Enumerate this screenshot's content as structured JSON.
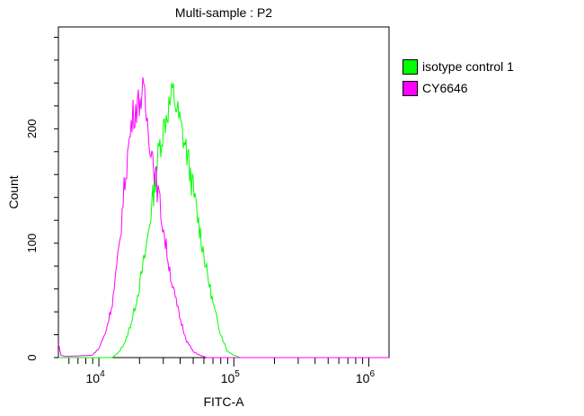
{
  "chart_data": {
    "type": "line",
    "title": "Multi-sample : P2",
    "xlabel": "FITC-A",
    "ylabel": "Count",
    "xscale": "log",
    "xlim_log10": [
      3.7,
      6.15
    ],
    "ylim": [
      0,
      289
    ],
    "x_ticks": [
      {
        "base": "10",
        "exp": "4",
        "log10": 4
      },
      {
        "base": "10",
        "exp": "5",
        "log10": 5
      },
      {
        "base": "10",
        "exp": "6",
        "log10": 6
      }
    ],
    "y_ticks": [
      {
        "label": "0",
        "value": 0
      },
      {
        "label": "100",
        "value": 100
      },
      {
        "label": "200",
        "value": 200
      }
    ],
    "legend_position": "right",
    "series": [
      {
        "name": "isotype control 1",
        "color": "#00ff00",
        "x_log10": [
          3.7,
          4.1,
          4.15,
          4.2,
          4.25,
          4.3,
          4.35,
          4.4,
          4.45,
          4.5,
          4.55,
          4.6,
          4.65,
          4.7,
          4.75,
          4.8,
          4.85,
          4.9,
          4.95,
          5.0,
          5.05,
          6.15
        ],
        "counts": [
          0,
          0,
          5,
          15,
          35,
          62,
          95,
          140,
          185,
          212,
          232,
          205,
          180,
          145,
          110,
          75,
          45,
          22,
          6,
          2,
          0,
          0
        ]
      },
      {
        "name": "CY6646",
        "color": "#ff00ff",
        "x_log10": [
          3.7,
          3.72,
          3.75,
          3.95,
          4.0,
          4.05,
          4.1,
          4.15,
          4.2,
          4.25,
          4.3,
          4.33,
          4.36,
          4.4,
          4.45,
          4.5,
          4.55,
          4.6,
          4.65,
          4.7,
          4.75,
          4.8,
          6.15
        ],
        "counts": [
          12,
          2,
          1,
          2,
          8,
          22,
          48,
          95,
          165,
          212,
          225,
          232,
          205,
          175,
          135,
          95,
          60,
          35,
          15,
          5,
          2,
          0,
          0
        ]
      }
    ]
  }
}
